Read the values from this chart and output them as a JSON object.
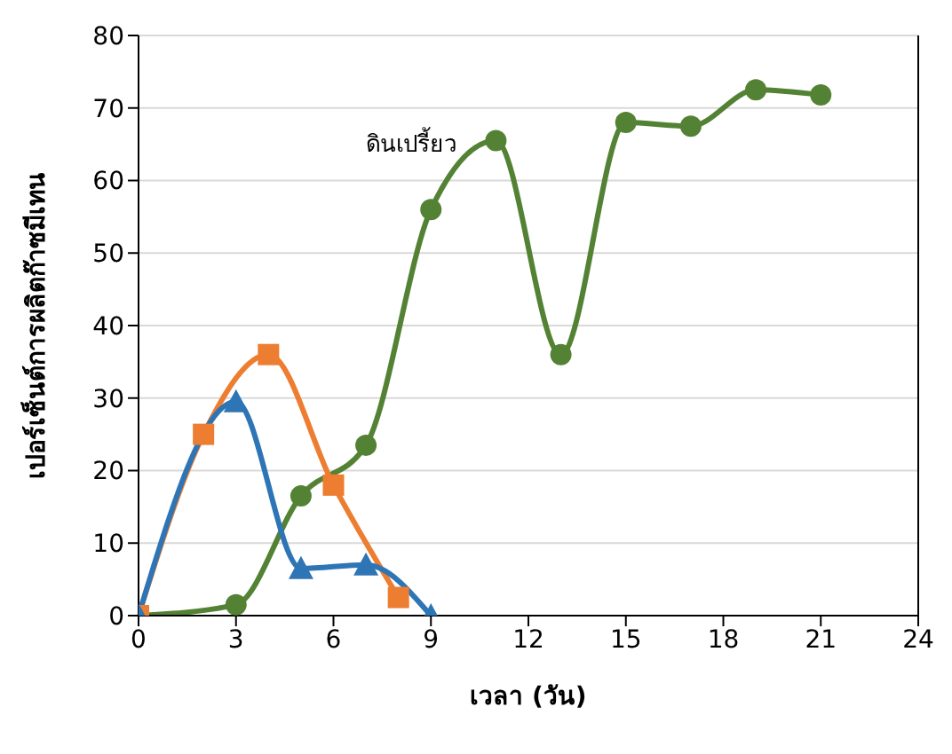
{
  "chart_data": {
    "type": "line",
    "xlabel": "เวลา (วัน)",
    "ylabel": "เปอร์เซ็นต์การผลิตก๊าซมีเทน",
    "xlim": [
      0,
      24
    ],
    "xticks": [
      0,
      3,
      6,
      9,
      12,
      15,
      18,
      21,
      24
    ],
    "ylim": [
      0,
      80
    ],
    "yticks": [
      0,
      10,
      20,
      30,
      40,
      50,
      60,
      70,
      80
    ],
    "grid": "y",
    "series": [
      {
        "name": "ดินเปรี้ยว",
        "color": "#548235",
        "marker": "circle",
        "x": [
          0,
          3,
          5,
          7,
          9,
          11,
          13,
          15,
          17,
          19,
          21
        ],
        "values": [
          0,
          1.5,
          16.5,
          23.5,
          56,
          65.5,
          36,
          68,
          67.5,
          72.5,
          71.8
        ]
      },
      {
        "color": "#ed7d31",
        "marker": "square",
        "x": [
          0,
          2,
          4,
          6,
          8
        ],
        "values": [
          0,
          25,
          36,
          18,
          2.5
        ]
      },
      {
        "color": "#2e75b6",
        "marker": "triangle",
        "x": [
          0,
          3,
          5,
          7,
          9
        ],
        "values": [
          0,
          29.5,
          6.5,
          7,
          0
        ]
      }
    ]
  }
}
